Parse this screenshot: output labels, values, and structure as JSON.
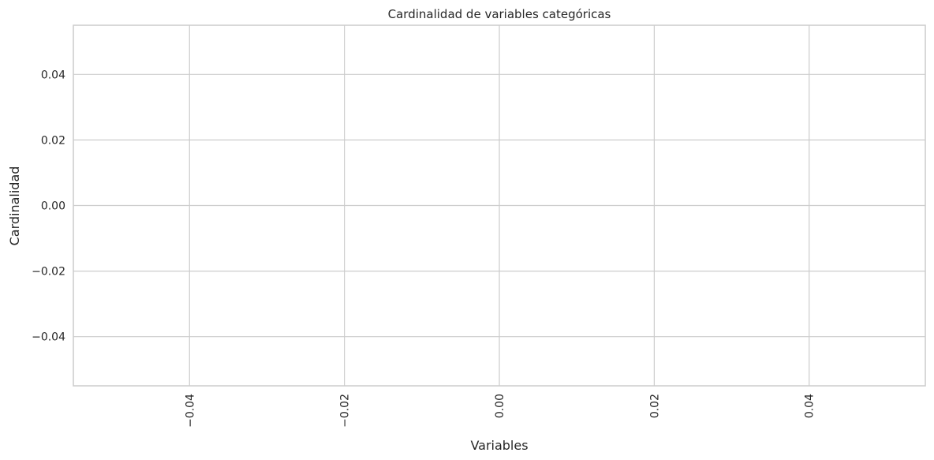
{
  "chart_data": {
    "type": "bar",
    "title": "Cardinalidad de variables categóricas",
    "xlabel": "Variables",
    "ylabel": "Cardinalidad",
    "categories": [],
    "values": [],
    "xlim": [
      -0.055,
      0.055
    ],
    "ylim": [
      -0.055,
      0.055
    ],
    "x_ticks": [
      -0.04,
      -0.02,
      0.0,
      0.02,
      0.04
    ],
    "x_tick_labels": [
      "−0.04",
      "−0.02",
      "0.00",
      "0.02",
      "0.04"
    ],
    "y_ticks": [
      0.04,
      0.02,
      0.0,
      -0.02,
      -0.04
    ],
    "y_tick_labels": [
      "0.04",
      "0.02",
      "0.00",
      "−0.02",
      "−0.04"
    ],
    "x_tick_rotation": 90,
    "grid": true,
    "colors": {
      "grid": "#cccccc",
      "spine": "#cccccc",
      "text": "#262626",
      "background": "#ffffff"
    }
  }
}
